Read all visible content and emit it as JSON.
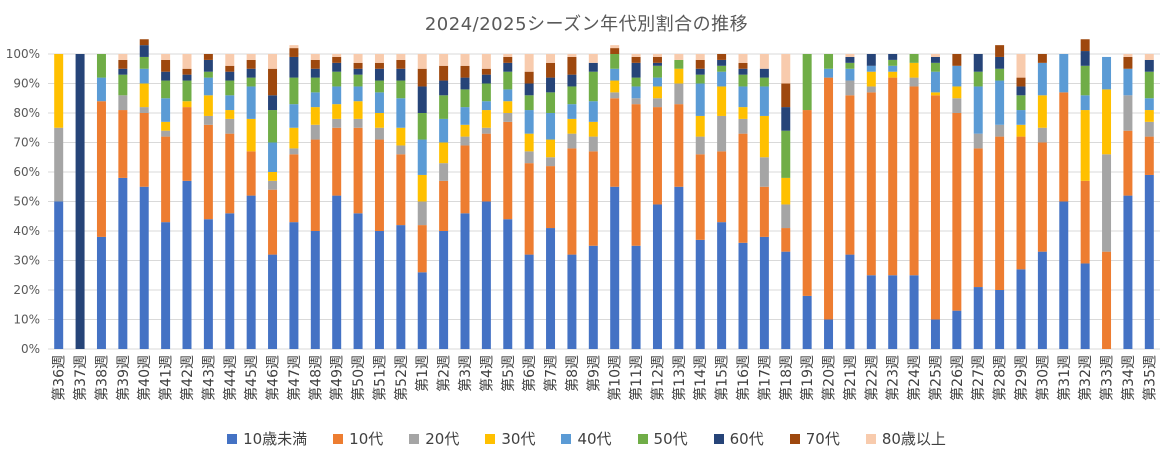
{
  "chart_data": {
    "type": "bar",
    "stacked": true,
    "title": "2024/2025シーズン年代別割合の推移",
    "xlabel": "",
    "ylabel": "",
    "ylim": [
      0,
      100
    ],
    "y_ticks": [
      "0%",
      "10%",
      "20%",
      "30%",
      "40%",
      "50%",
      "60%",
      "70%",
      "80%",
      "90%",
      "100%"
    ],
    "grid": true,
    "legend_position": "bottom",
    "categories": [
      "第36週",
      "第37週",
      "第38週",
      "第39週",
      "第40週",
      "第41週",
      "第42週",
      "第43週",
      "第44週",
      "第45週",
      "第46週",
      "第47週",
      "第48週",
      "第49週",
      "第50週",
      "第51週",
      "第52週",
      "第1週",
      "第2週",
      "第3週",
      "第4週",
      "第5週",
      "第6週",
      "第7週",
      "第8週",
      "第9週",
      "第10週",
      "第11週",
      "第12週",
      "第13週",
      "第14週",
      "第15週",
      "第16週",
      "第17週",
      "第18週",
      "第19週",
      "第20週",
      "第21週",
      "第22週",
      "第23週",
      "第24週",
      "第25週",
      "第26週",
      "第27週",
      "第28週",
      "第29週",
      "第30週",
      "第31週",
      "第32週",
      "第33週",
      "第34週",
      "第35週"
    ],
    "series": [
      {
        "name": "10歳未満",
        "color": "#4472C4",
        "values": [
          50,
          0,
          38,
          58,
          55,
          43,
          57,
          44,
          46,
          52,
          32,
          43,
          40,
          52,
          46,
          40,
          42,
          26,
          40,
          46,
          50,
          44,
          32,
          41,
          32,
          35,
          55,
          35,
          49,
          55,
          37,
          43,
          36,
          38,
          33,
          18,
          10,
          32,
          25,
          25,
          25,
          10,
          13,
          21,
          20,
          27,
          33,
          50,
          29,
          0,
          52,
          59
        ]
      },
      {
        "name": "10代",
        "color": "#ED7D31",
        "values": [
          0,
          0,
          46,
          23,
          25,
          29,
          25,
          32,
          27,
          15,
          22,
          23,
          31,
          23,
          29,
          31,
          24,
          16,
          17,
          23,
          23,
          33,
          31,
          21,
          36,
          32,
          30,
          48,
          33,
          28,
          29,
          24,
          37,
          17,
          8,
          63,
          82,
          54,
          62,
          67,
          64,
          76,
          67,
          47,
          52,
          45,
          37,
          37,
          28,
          33,
          22,
          13
        ]
      },
      {
        "name": "20代",
        "color": "#A5A5A5",
        "values": [
          25,
          0,
          0,
          5,
          2,
          2,
          0,
          3,
          5,
          0,
          3,
          2,
          5,
          3,
          3,
          4,
          3,
          8,
          6,
          3,
          2,
          3,
          4,
          3,
          5,
          5,
          2,
          2,
          3,
          7,
          6,
          12,
          5,
          10,
          8,
          0,
          0,
          5,
          2,
          0,
          3,
          0,
          5,
          5,
          4,
          0,
          5,
          0,
          0,
          33,
          12,
          5
        ]
      },
      {
        "name": "30代",
        "color": "#FFC000",
        "values": [
          25,
          0,
          0,
          0,
          8,
          3,
          2,
          7,
          3,
          11,
          3,
          7,
          6,
          5,
          6,
          5,
          6,
          9,
          7,
          4,
          6,
          4,
          6,
          6,
          5,
          5,
          4,
          0,
          4,
          5,
          7,
          10,
          4,
          14,
          9,
          0,
          0,
          0,
          5,
          2,
          5,
          1,
          4,
          0,
          0,
          4,
          11,
          0,
          24,
          22,
          0,
          4
        ]
      },
      {
        "name": "40代",
        "color": "#5B9BD5",
        "values": [
          0,
          0,
          8,
          0,
          5,
          8,
          0,
          6,
          5,
          11,
          10,
          8,
          5,
          6,
          5,
          7,
          10,
          12,
          8,
          6,
          3,
          4,
          8,
          9,
          5,
          7,
          4,
          4,
          3,
          0,
          11,
          5,
          7,
          10,
          0,
          0,
          3,
          4,
          2,
          2,
          0,
          7,
          7,
          16,
          15,
          5,
          11,
          13,
          5,
          11,
          9,
          4
        ]
      },
      {
        "name": "50代",
        "color": "#70AD47",
        "values": [
          0,
          0,
          8,
          7,
          4,
          6,
          7,
          2,
          5,
          3,
          11,
          9,
          5,
          5,
          4,
          4,
          6,
          9,
          8,
          6,
          6,
          6,
          5,
          7,
          6,
          10,
          5,
          3,
          4,
          3,
          3,
          2,
          4,
          3,
          16,
          19,
          5,
          2,
          0,
          2,
          3,
          3,
          0,
          5,
          4,
          5,
          0,
          0,
          10,
          0,
          0,
          9
        ]
      },
      {
        "name": "60代",
        "color": "#264478",
        "values": [
          0,
          100,
          0,
          2,
          4,
          3,
          2,
          4,
          3,
          3,
          5,
          7,
          3,
          3,
          2,
          4,
          4,
          9,
          5,
          4,
          3,
          3,
          4,
          5,
          4,
          3,
          0,
          5,
          1,
          0,
          2,
          2,
          2,
          3,
          8,
          0,
          0,
          2,
          4,
          2,
          0,
          2,
          0,
          6,
          4,
          3,
          0,
          0,
          5,
          0,
          0,
          4
        ]
      },
      {
        "name": "70代",
        "color": "#9E480E",
        "values": [
          0,
          0,
          0,
          3,
          2,
          4,
          2,
          2,
          2,
          3,
          9,
          3,
          3,
          2,
          2,
          2,
          3,
          6,
          5,
          4,
          2,
          2,
          4,
          5,
          6,
          0,
          2,
          2,
          2,
          0,
          3,
          2,
          2,
          0,
          8,
          0,
          0,
          0,
          0,
          0,
          0,
          0,
          4,
          0,
          4,
          3,
          3,
          0,
          4,
          0,
          4,
          0
        ]
      },
      {
        "name": "80歳以上",
        "color": "#F8CBAD",
        "values": [
          0,
          0,
          0,
          2,
          0,
          2,
          5,
          0,
          4,
          2,
          5,
          1,
          2,
          1,
          3,
          3,
          2,
          5,
          4,
          4,
          5,
          1,
          6,
          3,
          1,
          3,
          1,
          1,
          1,
          2,
          2,
          0,
          3,
          5,
          10,
          0,
          0,
          1,
          0,
          0,
          0,
          1,
          0,
          0,
          0,
          8,
          0,
          0,
          0,
          0,
          1,
          2
        ]
      }
    ]
  }
}
